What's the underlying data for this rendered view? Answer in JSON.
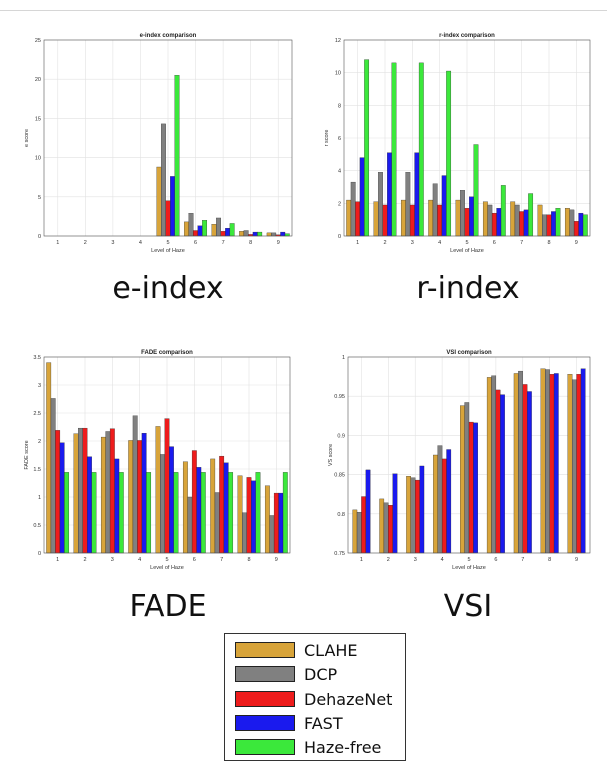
{
  "chart_data": [
    {
      "id": "e",
      "type": "bar",
      "title": "e-index comparison",
      "xlabel": "Level of Haze",
      "ylabel": "e score",
      "ylim": [
        0,
        25
      ],
      "yticks": [
        0,
        5,
        10,
        15,
        20,
        25
      ],
      "categories": [
        "1",
        "2",
        "3",
        "4",
        "5",
        "6",
        "7",
        "8",
        "9"
      ],
      "grid": true,
      "series": [
        {
          "name": "CLAHE",
          "values": [
            0,
            0,
            0,
            0,
            8.8,
            1.8,
            1.5,
            0.6,
            0.4
          ]
        },
        {
          "name": "DCP",
          "values": [
            0,
            0,
            0,
            0,
            14.3,
            2.9,
            2.3,
            0.7,
            0.4
          ]
        },
        {
          "name": "DehazeNet",
          "values": [
            0,
            0,
            0,
            0,
            4.5,
            0.7,
            0.6,
            0.2,
            0.15
          ]
        },
        {
          "name": "FAST",
          "values": [
            0,
            0,
            0,
            0,
            7.6,
            1.3,
            1.0,
            0.5,
            0.5
          ]
        },
        {
          "name": "Haze-free",
          "values": [
            0,
            0,
            0,
            0,
            20.5,
            2.0,
            1.6,
            0.5,
            0.3
          ]
        }
      ]
    },
    {
      "id": "r",
      "type": "bar",
      "title": "r-index comparison",
      "xlabel": "Level of Haze",
      "ylabel": "r score",
      "ylim": [
        0,
        12
      ],
      "yticks": [
        0,
        2,
        4,
        6,
        8,
        10,
        12
      ],
      "categories": [
        "1",
        "2",
        "3",
        "4",
        "5",
        "6",
        "7",
        "8",
        "9"
      ],
      "grid": true,
      "series": [
        {
          "name": "CLAHE",
          "values": [
            2.2,
            2.1,
            2.2,
            2.2,
            2.2,
            2.1,
            2.1,
            1.9,
            1.7
          ]
        },
        {
          "name": "DCP",
          "values": [
            3.3,
            3.9,
            3.9,
            3.2,
            2.8,
            1.9,
            1.9,
            1.3,
            1.6
          ]
        },
        {
          "name": "DehazeNet",
          "values": [
            2.1,
            1.9,
            1.9,
            1.9,
            1.7,
            1.4,
            1.5,
            1.3,
            0.9
          ]
        },
        {
          "name": "FAST",
          "values": [
            4.8,
            5.1,
            5.1,
            3.7,
            2.4,
            1.7,
            1.6,
            1.5,
            1.4
          ]
        },
        {
          "name": "Haze-free",
          "values": [
            10.8,
            10.6,
            10.6,
            10.1,
            5.6,
            3.1,
            2.6,
            1.7,
            1.3
          ]
        }
      ]
    },
    {
      "id": "fade",
      "type": "bar",
      "title": "FADE comparison",
      "xlabel": "Level of Haze",
      "ylabel": "FADE score",
      "ylim": [
        0,
        3.5
      ],
      "yticks": [
        0,
        0.5,
        1,
        1.5,
        2,
        2.5,
        3,
        3.5
      ],
      "categories": [
        "1",
        "2",
        "3",
        "4",
        "5",
        "6",
        "7",
        "8",
        "9"
      ],
      "grid": true,
      "series": [
        {
          "name": "CLAHE",
          "values": [
            3.4,
            2.13,
            2.07,
            2.01,
            2.26,
            1.63,
            1.68,
            1.38,
            1.2
          ]
        },
        {
          "name": "DCP",
          "values": [
            2.76,
            2.23,
            2.17,
            2.45,
            1.76,
            1.0,
            1.08,
            0.72,
            0.67
          ]
        },
        {
          "name": "DehazeNet",
          "values": [
            2.19,
            2.23,
            2.22,
            2.01,
            2.4,
            1.83,
            1.73,
            1.35,
            1.07
          ]
        },
        {
          "name": "FAST",
          "values": [
            1.97,
            1.72,
            1.68,
            2.14,
            1.9,
            1.53,
            1.61,
            1.29,
            1.07
          ]
        },
        {
          "name": "Haze-free",
          "values": [
            1.44,
            1.44,
            1.44,
            1.44,
            1.44,
            1.44,
            1.44,
            1.44,
            1.44
          ]
        }
      ]
    },
    {
      "id": "vsi",
      "type": "bar",
      "title": "VSI comparison",
      "xlabel": "Level of Haze",
      "ylabel": "VS score",
      "ylim": [
        0.75,
        1
      ],
      "yticks": [
        0.75,
        0.8,
        0.85,
        0.9,
        0.95,
        1
      ],
      "categories": [
        "1",
        "2",
        "3",
        "4",
        "5",
        "6",
        "7",
        "8",
        "9"
      ],
      "grid": true,
      "series": [
        {
          "name": "CLAHE",
          "values": [
            0.805,
            0.819,
            0.848,
            0.875,
            0.938,
            0.974,
            0.979,
            0.985,
            0.978
          ]
        },
        {
          "name": "DCP",
          "values": [
            0.802,
            0.814,
            0.846,
            0.887,
            0.942,
            0.976,
            0.982,
            0.984,
            0.971
          ]
        },
        {
          "name": "DehazeNet",
          "values": [
            0.822,
            0.811,
            0.843,
            0.87,
            0.917,
            0.958,
            0.965,
            0.978,
            0.978
          ]
        },
        {
          "name": "FAST",
          "values": [
            0.856,
            0.851,
            0.861,
            0.882,
            0.916,
            0.952,
            0.956,
            0.979,
            0.985
          ]
        }
      ]
    }
  ],
  "captions": {
    "e": "e-index",
    "r": "r-index",
    "fade": "FADE",
    "vsi": "VSI"
  },
  "legend": {
    "items": [
      {
        "label": "CLAHE",
        "color": "#d8a43a"
      },
      {
        "label": "DCP",
        "color": "#808080"
      },
      {
        "label": "DehazeNet",
        "color": "#ee1c1c"
      },
      {
        "label": "FAST",
        "color": "#1a1aee"
      },
      {
        "label": "Haze-free",
        "color": "#3be83b"
      }
    ]
  },
  "colors": {
    "CLAHE": "#d8a43a",
    "DCP": "#808080",
    "DehazeNet": "#ee1c1c",
    "FAST": "#1a1aee",
    "Haze-free": "#3be83b"
  }
}
